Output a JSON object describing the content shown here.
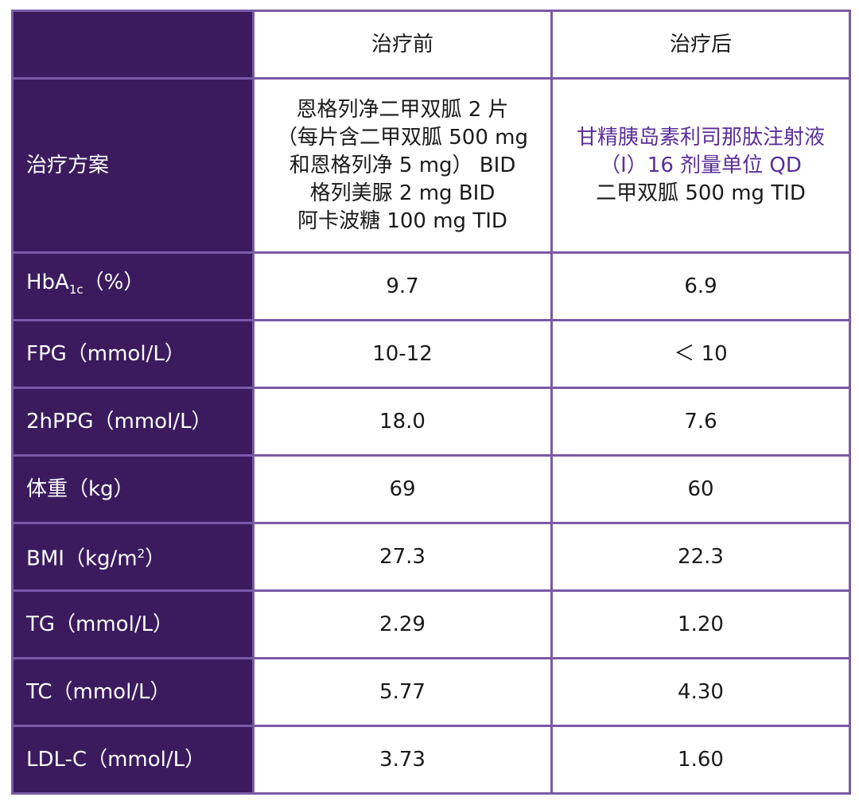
{
  "table": {
    "header": {
      "before": "治疗前",
      "after": "治疗后"
    },
    "plan": {
      "label": "治疗方案",
      "before": [
        "恩格列净二甲双胍 2 片",
        "（每片含二甲双胍 500 mg",
        "和恩格列净 5 mg） BID",
        "格列美脲 2 mg BID",
        "阿卡波糖 100 mg TID"
      ],
      "after": [
        "甘精胰岛素利司那肽注射液",
        "（Ⅰ）16 剂量单位 QD",
        "二甲双胍 500 mg TID"
      ]
    },
    "rows": [
      {
        "label": [
          {
            "text": "HbA"
          },
          {
            "sub": "1c"
          },
          {
            "text": "（%）"
          }
        ],
        "before": "9.7",
        "after": "6.9"
      },
      {
        "label": [
          {
            "text": "FPG（mmol/L）"
          }
        ],
        "before": "10-12",
        "after": "＜ 10"
      },
      {
        "label": [
          {
            "text": "2hPPG（mmol/L）"
          }
        ],
        "before": "18.0",
        "after": "7.6"
      },
      {
        "label": [
          {
            "text": "体重（kg）"
          }
        ],
        "before": "69",
        "after": "60"
      },
      {
        "label": [
          {
            "text": "BMI（kg/m"
          },
          {
            "sup": "2"
          },
          {
            "text": "）"
          }
        ],
        "before": "27.3",
        "after": "22.3"
      },
      {
        "label": [
          {
            "text": "TG（mmol/L）"
          }
        ],
        "before": "2.29",
        "after": "1.20"
      },
      {
        "label": [
          {
            "text": "TC（mmol/L）"
          }
        ],
        "before": "5.77",
        "after": "4.30"
      },
      {
        "label": [
          {
            "text": "LDL-C（mmol/L）"
          }
        ],
        "before": "3.73",
        "after": "1.60"
      }
    ]
  }
}
